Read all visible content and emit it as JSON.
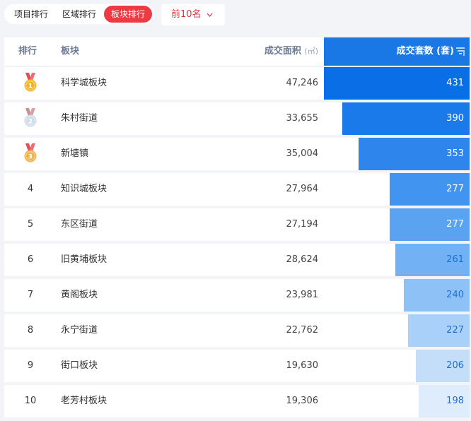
{
  "tabs": [
    {
      "label": "项目排行",
      "active": false
    },
    {
      "label": "区域排行",
      "active": false
    },
    {
      "label": "板块排行",
      "active": true
    }
  ],
  "filter": {
    "label": "前10名",
    "icon": "chevron-down-icon"
  },
  "header": {
    "rank": "排行",
    "name": "板块",
    "area": "成交面积",
    "area_unit": "(㎡)",
    "count": "成交套数 (套)",
    "sort_icon": "sort-desc-icon"
  },
  "medal_colors": {
    "gold": "#f3b42b",
    "silver": "#cfdce8",
    "bronze": "#efb14a",
    "ribbon": "#e14f52"
  },
  "bar_colors": [
    "#0a6fe6",
    "#1a7ae9",
    "#2e86ec",
    "#4194ef",
    "#5aa3f1",
    "#72b1f3",
    "#8ec1f6",
    "#a9d0f8",
    "#c4def9",
    "#dfecfb"
  ],
  "rows": [
    {
      "rank": "1",
      "medal": "gold",
      "name": "科学城板块",
      "area": "47,246",
      "count": 431
    },
    {
      "rank": "2",
      "medal": "silver",
      "name": "朱村街道",
      "area": "33,655",
      "count": 390
    },
    {
      "rank": "3",
      "medal": "bronze",
      "name": "新塘镇",
      "area": "35,004",
      "count": 353
    },
    {
      "rank": "4",
      "medal": null,
      "name": "知识城板块",
      "area": "27,964",
      "count": 277
    },
    {
      "rank": "5",
      "medal": null,
      "name": "东区街道",
      "area": "27,194",
      "count": 277
    },
    {
      "rank": "6",
      "medal": null,
      "name": "旧黄埔板块",
      "area": "28,624",
      "count": 261
    },
    {
      "rank": "7",
      "medal": null,
      "name": "黄阁板块",
      "area": "23,981",
      "count": 240
    },
    {
      "rank": "8",
      "medal": null,
      "name": "永宁街道",
      "area": "22,762",
      "count": 227
    },
    {
      "rank": "9",
      "medal": null,
      "name": "街口板块",
      "area": "19,630",
      "count": 206
    },
    {
      "rank": "10",
      "medal": null,
      "name": "老芳村板块",
      "area": "19,306",
      "count": 198
    }
  ]
}
